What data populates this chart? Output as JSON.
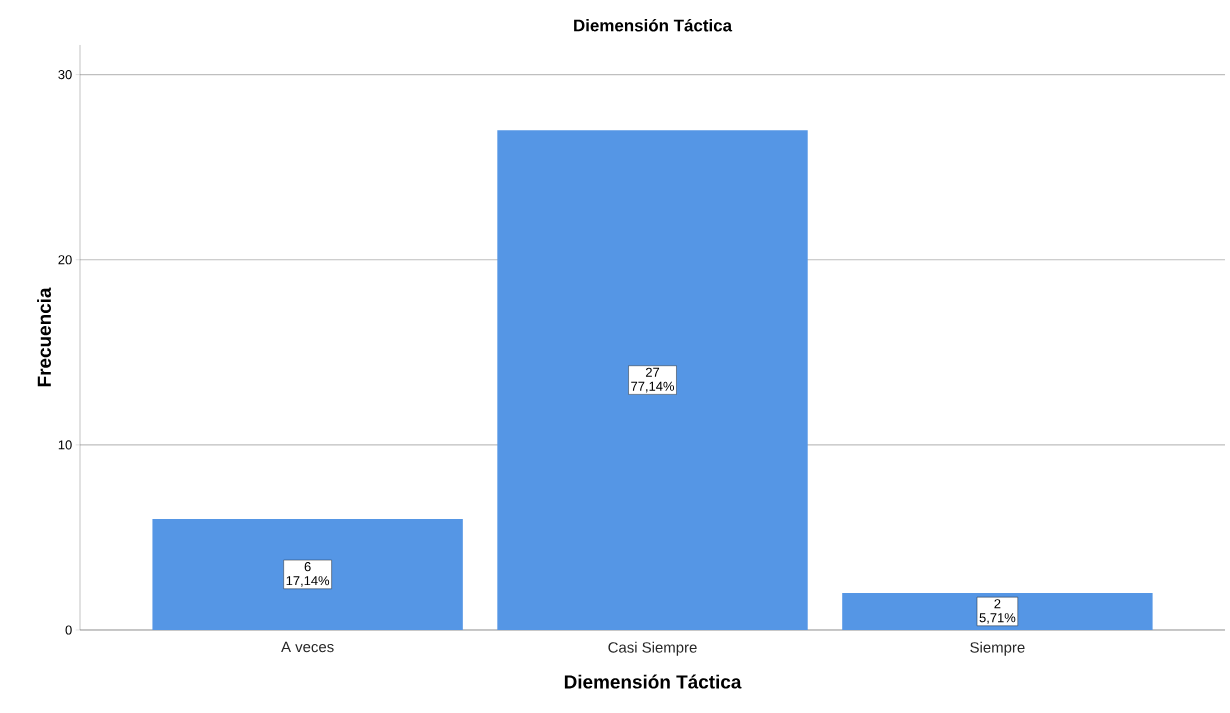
{
  "chart_data": {
    "type": "bar",
    "title": "Diemensión Táctica",
    "xlabel": "Diemensión Táctica",
    "ylabel": "Frecuencia",
    "categories": [
      "A veces",
      "Casi Siempre",
      "Siempre"
    ],
    "values": [
      6,
      27,
      2
    ],
    "color": "#5596e5",
    "value_labels": [
      "6 17,14%",
      "27 77,14%",
      "2 5,71%"
    ],
    "ylim": [
      0,
      31.6
    ],
    "yticks": [
      0,
      10,
      20,
      30
    ],
    "grid": "y"
  }
}
